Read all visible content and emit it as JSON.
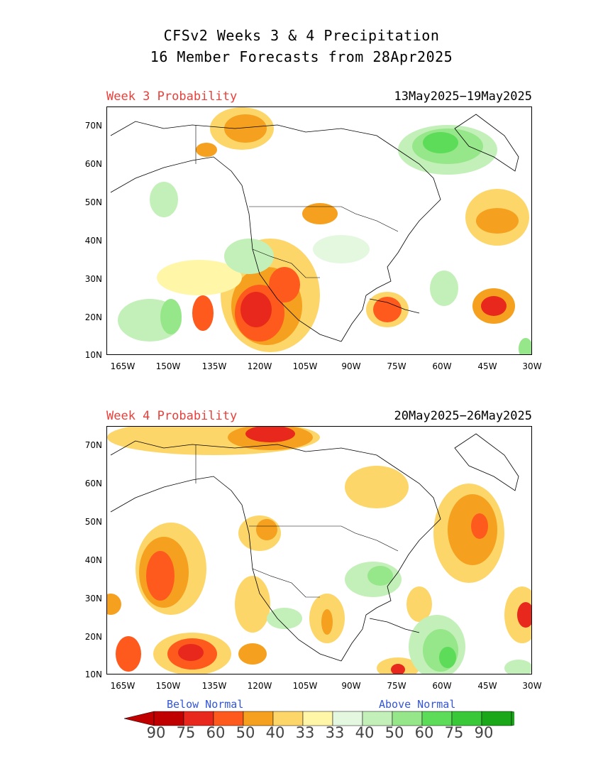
{
  "title_line1": "CFSv2 Weeks 3 & 4 Precipitation",
  "title_line2": "16 Member Forecasts from 28Apr2025",
  "panels": [
    {
      "label": "Week 3 Probability",
      "dates": "13May2025−19May2025"
    },
    {
      "label": "Week 4 Probability",
      "dates": "20May2025−26May2025"
    }
  ],
  "lat_ticks": [
    "70N",
    "60N",
    "50N",
    "40N",
    "30N",
    "20N",
    "10N"
  ],
  "lon_ticks": [
    "165W",
    "150W",
    "135W",
    "120W",
    "105W",
    "90W",
    "75W",
    "60W",
    "45W",
    "30W"
  ],
  "legend": {
    "below_label": "Below Normal",
    "above_label": "Above Normal",
    "below_values": [
      "90",
      "75",
      "60",
      "50",
      "40",
      "33"
    ],
    "above_values": [
      "33",
      "40",
      "50",
      "60",
      "75",
      "90"
    ],
    "below_colors": [
      "#c00000",
      "#e8281c",
      "#ff5a1e",
      "#f5a01e",
      "#fdd66a",
      "#fff6a8"
    ],
    "above_colors": [
      "#e4f8e0",
      "#c2f0b8",
      "#96e68a",
      "#5cdc58",
      "#38c838",
      "#1aa81a"
    ]
  }
}
